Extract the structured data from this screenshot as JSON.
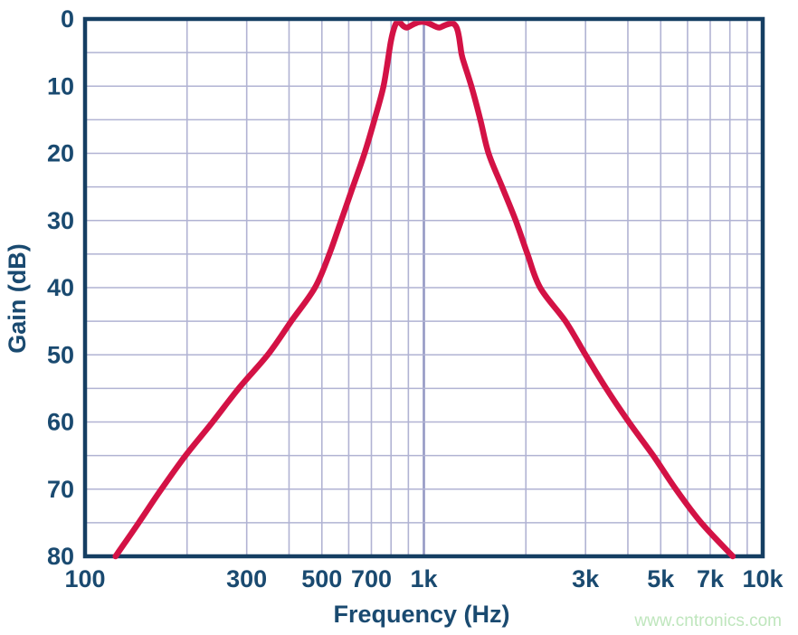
{
  "watermark": {
    "text": "www.cntronics.com"
  },
  "colors": {
    "background": "#ffffff",
    "axis_frame": "#153e62",
    "label_text": "#1a4a70",
    "grid": "#b1b3d3",
    "grid_emphasis": "#9599c4",
    "curve": "#d31245",
    "watermark": "#bfe6bd"
  },
  "chart_data": {
    "type": "line",
    "title": "",
    "xlabel": "Frequency (Hz)",
    "ylabel": "Gain (dB)",
    "x_scale": "log",
    "x_range_hz": [
      100,
      10000
    ],
    "y_range_db": [
      0,
      80
    ],
    "y_axis_direction": "down (0 dB at top, 80 dB at bottom)",
    "grid": "on",
    "legend": "none",
    "y_gridline_step_db": 5,
    "y_tick_labels": [
      "0",
      "10",
      "20",
      "30",
      "40",
      "50",
      "60",
      "70",
      "80"
    ],
    "y_tick_values_db": [
      0,
      10,
      20,
      30,
      40,
      50,
      60,
      70,
      80
    ],
    "x_tick_labels": [
      "100",
      "300",
      "500",
      "700",
      "1k",
      "3k",
      "5k",
      "7k",
      "10k"
    ],
    "x_tick_values_hz": [
      100,
      300,
      500,
      700,
      1000,
      3000,
      5000,
      7000,
      10000
    ],
    "x_gridline_values_hz": [
      200,
      300,
      400,
      500,
      600,
      700,
      800,
      900,
      1000,
      2000,
      3000,
      4000,
      5000,
      6000,
      7000,
      8000,
      9000
    ],
    "x_emphasized_gridline_hz": 1000,
    "series": [
      {
        "name": "bandpass-filter-response",
        "description": "Band-pass filter magnitude response; ~1 dB equiripple passband approx 840-1270 Hz, skirts falling to 80 dB at approx 123 Hz and 8.2 kHz",
        "points_hz_db": [
          [
            123,
            80
          ],
          [
            144,
            75
          ],
          [
            168,
            70
          ],
          [
            198,
            65
          ],
          [
            238,
            60
          ],
          [
            284,
            55
          ],
          [
            346,
            50
          ],
          [
            406,
            45
          ],
          [
            477,
            40
          ],
          [
            526,
            35
          ],
          [
            570,
            30
          ],
          [
            617,
            25
          ],
          [
            668,
            20
          ],
          [
            715,
            15
          ],
          [
            760,
            10
          ],
          [
            789,
            5
          ],
          [
            800,
            3.2
          ],
          [
            812,
            1.8
          ],
          [
            825,
            0.8
          ],
          [
            838,
            0.42
          ],
          [
            852,
            0.6
          ],
          [
            870,
            1.05
          ],
          [
            892,
            1.28
          ],
          [
            915,
            1.0
          ],
          [
            940,
            0.7
          ],
          [
            965,
            0.48
          ],
          [
            989,
            0.42
          ],
          [
            1015,
            0.5
          ],
          [
            1045,
            0.75
          ],
          [
            1080,
            1.1
          ],
          [
            1110,
            1.28
          ],
          [
            1140,
            1.05
          ],
          [
            1175,
            0.8
          ],
          [
            1211,
            0.65
          ],
          [
            1233,
            0.85
          ],
          [
            1252,
            1.4
          ],
          [
            1268,
            2.5
          ],
          [
            1283,
            4.2
          ],
          [
            1300,
            5.8
          ],
          [
            1381,
            10
          ],
          [
            1468,
            15
          ],
          [
            1552,
            20
          ],
          [
            1702,
            25
          ],
          [
            1866,
            30
          ],
          [
            2022,
            35
          ],
          [
            2203,
            40
          ],
          [
            2617,
            45
          ],
          [
            3000,
            50
          ],
          [
            3451,
            55
          ],
          [
            4025,
            60
          ],
          [
            4751,
            65
          ],
          [
            5542,
            70
          ],
          [
            6582,
            75
          ],
          [
            8160,
            80
          ]
        ]
      }
    ]
  }
}
